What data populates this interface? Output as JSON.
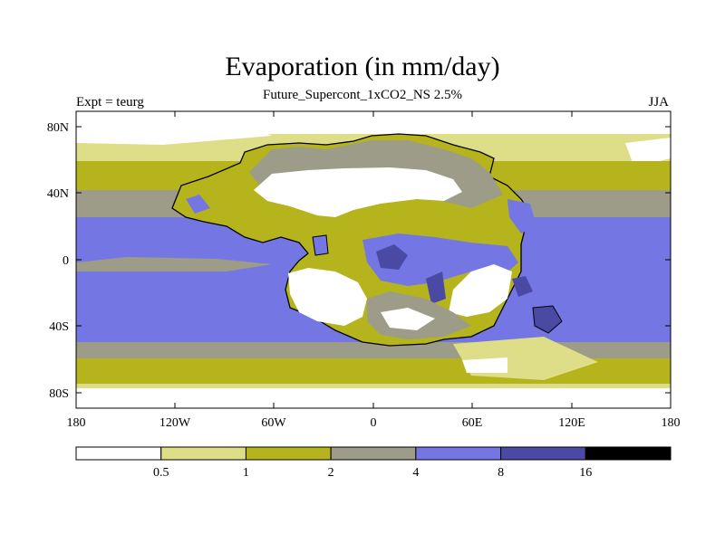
{
  "title": "Evaporation (in mm/day)",
  "subtitle": "Future_Supercont_1xCO2_NS 2.5%",
  "left_label": "Expt = teurg",
  "right_label": "JJA",
  "axes": {
    "x_ticks": [
      "180",
      "120W",
      "60W",
      "0",
      "60E",
      "120E",
      "180"
    ],
    "y_ticks": [
      "80N",
      "40N",
      "0",
      "40S",
      "80S"
    ]
  },
  "colorbar": {
    "colors": [
      "#ffffff",
      "#dede88",
      "#b6b41c",
      "#9c9c88",
      "#7476e4",
      "#4a4aa4",
      "#000000"
    ],
    "labels": [
      "0.5",
      "1",
      "2",
      "4",
      "8",
      "16"
    ]
  }
}
